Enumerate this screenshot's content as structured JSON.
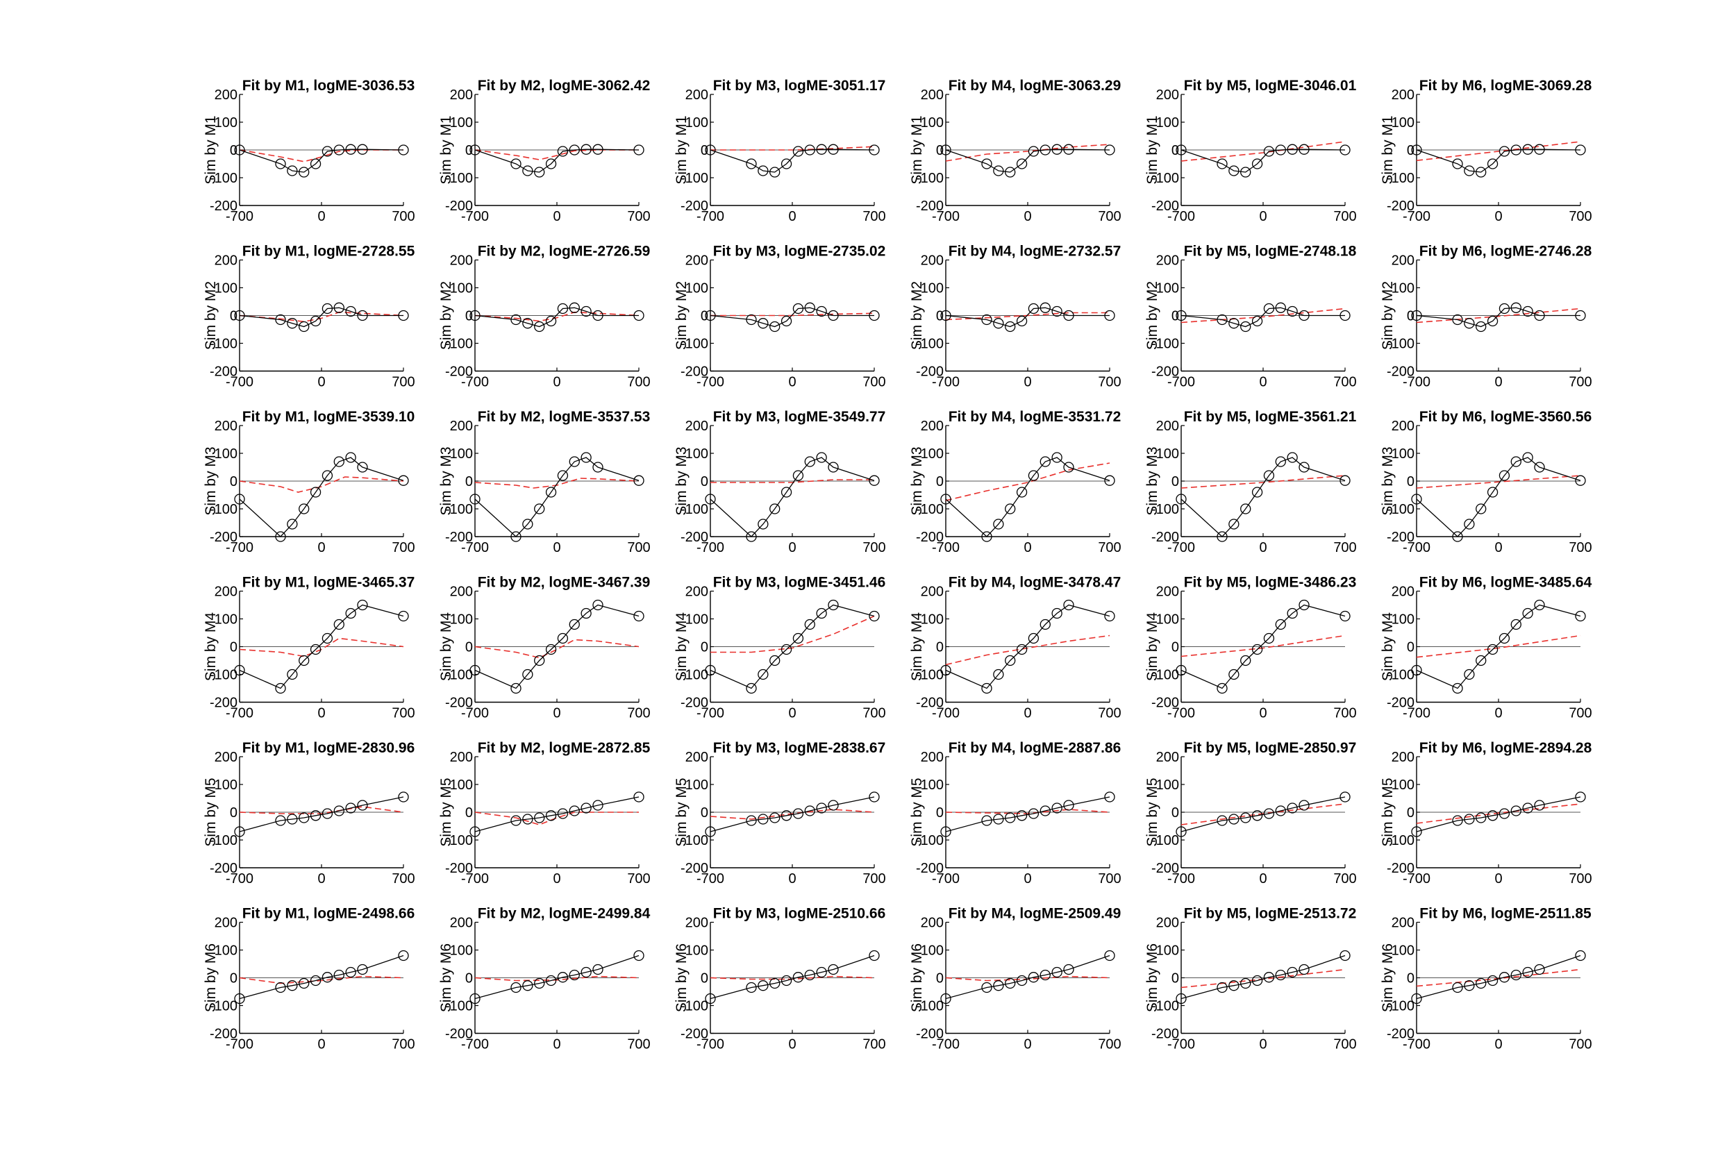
{
  "figure": {
    "rows": 6,
    "cols": 6,
    "row_labels": [
      "Sim by M1",
      "Sim by M2",
      "Sim by M3",
      "Sim by M4",
      "Sim by M5",
      "Sim by M6"
    ],
    "col_models": [
      "M1",
      "M2",
      "M3",
      "M4",
      "M5",
      "M6"
    ]
  },
  "chart_data": {
    "type": "line",
    "panel_grid": [
      6,
      6
    ],
    "xlim": [
      -700,
      700
    ],
    "ylim": [
      -200,
      200
    ],
    "xticks": [
      -700,
      0,
      700
    ],
    "yticks": [
      -200,
      -100,
      0,
      100,
      200
    ],
    "ytick_labels": [
      "-200",
      "-100",
      "0",
      "100",
      "200"
    ],
    "zero_line": true,
    "grid": false,
    "colors": {
      "sim": "#000000",
      "fit": "#e8302c",
      "zero": "#555555"
    },
    "sim_x": [
      -700,
      -350,
      -250,
      -150,
      -50,
      50,
      150,
      250,
      350,
      700
    ],
    "titles": [
      [
        "Fit by M1, logME-3036.53",
        "Fit by M2, logME-3062.42",
        "Fit by M3, logME-3051.17",
        "Fit by M4, logME-3063.29",
        "Fit by M5, logME-3046.01",
        "Fit by M6, logME-3069.28"
      ],
      [
        "Fit by M1, logME-2728.55",
        "Fit by M2, logME-2726.59",
        "Fit by M3, logME-2735.02",
        "Fit by M4, logME-2732.57",
        "Fit by M5, logME-2748.18",
        "Fit by M6, logME-2746.28"
      ],
      [
        "Fit by M1, logME-3539.10",
        "Fit by M2, logME-3537.53",
        "Fit by M3, logME-3549.77",
        "Fit by M4, logME-3531.72",
        "Fit by M5, logME-3561.21",
        "Fit by M6, logME-3560.56"
      ],
      [
        "Fit by M1, logME-3465.37",
        "Fit by M2, logME-3467.39",
        "Fit by M3, logME-3451.46",
        "Fit by M4, logME-3478.47",
        "Fit by M5, logME-3486.23",
        "Fit by M6, logME-3485.64"
      ],
      [
        "Fit by M1, logME-2830.96",
        "Fit by M2, logME-2872.85",
        "Fit by M3, logME-2838.67",
        "Fit by M4, logME-2887.86",
        "Fit by M5, logME-2850.97",
        "Fit by M6, logME-2894.28"
      ],
      [
        "Fit by M1, logME-2498.66",
        "Fit by M2, logME-2499.84",
        "Fit by M3, logME-2510.66",
        "Fit by M4, logME-2509.49",
        "Fit by M5, logME-2513.72",
        "Fit by M6, logME-2511.85"
      ]
    ],
    "sim_y": [
      [
        0,
        -50,
        -75,
        -80,
        -50,
        -5,
        0,
        2,
        2,
        0
      ],
      [
        0,
        -15,
        -28,
        -40,
        -20,
        25,
        28,
        15,
        0,
        0
      ],
      [
        -65,
        -200,
        -155,
        -100,
        -40,
        20,
        70,
        85,
        50,
        2
      ],
      [
        -85,
        -150,
        -100,
        -50,
        -10,
        30,
        80,
        120,
        150,
        110
      ],
      [
        -70,
        -30,
        -25,
        -20,
        -12,
        -5,
        5,
        15,
        25,
        55
      ],
      [
        -75,
        -35,
        -28,
        -20,
        -10,
        2,
        10,
        20,
        30,
        80
      ]
    ],
    "fits": [
      [
        {
          "x": [
            -700,
            -350,
            -150,
            0,
            150,
            350,
            700
          ],
          "y": [
            0,
            -25,
            -42,
            -25,
            -5,
            0,
            0
          ]
        },
        {
          "x": [
            -700,
            -350,
            -150,
            0,
            150,
            350,
            700
          ],
          "y": [
            0,
            -20,
            -35,
            -20,
            -3,
            0,
            0
          ]
        },
        {
          "x": [
            -700,
            0,
            350,
            700
          ],
          "y": [
            0,
            0,
            5,
            12
          ]
        },
        {
          "x": [
            -700,
            -350,
            0,
            350,
            700
          ],
          "y": [
            -40,
            -15,
            -5,
            10,
            20
          ]
        },
        {
          "x": [
            -700,
            0,
            700
          ],
          "y": [
            -40,
            -10,
            30
          ]
        },
        {
          "x": [
            -700,
            0,
            700
          ],
          "y": [
            -38,
            -5,
            30
          ]
        }
      ],
      [
        {
          "x": [
            -700,
            -350,
            -150,
            0,
            150,
            350,
            700
          ],
          "y": [
            0,
            -12,
            -22,
            -10,
            12,
            8,
            0
          ]
        },
        {
          "x": [
            -700,
            -350,
            -150,
            0,
            150,
            350,
            700
          ],
          "y": [
            0,
            -10,
            -20,
            -8,
            12,
            8,
            0
          ]
        },
        {
          "x": [
            -700,
            0,
            350,
            700
          ],
          "y": [
            0,
            0,
            5,
            8
          ]
        },
        {
          "x": [
            -700,
            -350,
            0,
            350,
            700
          ],
          "y": [
            -15,
            -8,
            0,
            10,
            10
          ]
        },
        {
          "x": [
            -700,
            0,
            700
          ],
          "y": [
            -25,
            -5,
            25
          ]
        },
        {
          "x": [
            -700,
            0,
            700
          ],
          "y": [
            -25,
            -3,
            25
          ]
        }
      ],
      [
        {
          "x": [
            -700,
            -350,
            -200,
            0,
            200,
            350,
            700
          ],
          "y": [
            0,
            -20,
            -40,
            -20,
            15,
            12,
            0
          ]
        },
        {
          "x": [
            -700,
            -350,
            -200,
            0,
            200,
            350,
            700
          ],
          "y": [
            -5,
            -15,
            -25,
            -15,
            10,
            8,
            0
          ]
        },
        {
          "x": [
            -700,
            0,
            350,
            700
          ],
          "y": [
            -5,
            -5,
            5,
            5
          ]
        },
        {
          "x": [
            -700,
            -350,
            0,
            350,
            700
          ],
          "y": [
            -70,
            -35,
            -5,
            40,
            65
          ]
        },
        {
          "x": [
            -700,
            0,
            700
          ],
          "y": [
            -25,
            -5,
            20
          ]
        },
        {
          "x": [
            -700,
            0,
            700
          ],
          "y": [
            -25,
            -3,
            20
          ]
        }
      ],
      [
        {
          "x": [
            -700,
            -350,
            -150,
            0,
            150,
            350,
            700
          ],
          "y": [
            -10,
            -20,
            -35,
            -10,
            30,
            20,
            0
          ]
        },
        {
          "x": [
            -700,
            -350,
            -150,
            0,
            150,
            350,
            700
          ],
          "y": [
            0,
            -20,
            -40,
            -10,
            25,
            20,
            0
          ]
        },
        {
          "x": [
            -700,
            -350,
            0,
            350,
            700
          ],
          "y": [
            -20,
            -20,
            -5,
            45,
            110
          ]
        },
        {
          "x": [
            -700,
            -350,
            0,
            350,
            700
          ],
          "y": [
            -65,
            -30,
            -5,
            20,
            40
          ]
        },
        {
          "x": [
            -700,
            0,
            700
          ],
          "y": [
            -35,
            -5,
            40
          ]
        },
        {
          "x": [
            -700,
            0,
            700
          ],
          "y": [
            -38,
            -5,
            40
          ]
        }
      ],
      [
        {
          "x": [
            -700,
            -350,
            0,
            350,
            700
          ],
          "y": [
            0,
            -5,
            -5,
            20,
            0
          ]
        },
        {
          "x": [
            -700,
            -350,
            -150,
            0,
            150,
            350,
            700
          ],
          "y": [
            0,
            -20,
            -45,
            -20,
            0,
            0,
            0
          ]
        },
        {
          "x": [
            -700,
            -350,
            0,
            350,
            700
          ],
          "y": [
            -15,
            -25,
            -5,
            10,
            0
          ]
        },
        {
          "x": [
            -700,
            0,
            350,
            700
          ],
          "y": [
            0,
            -5,
            10,
            0
          ]
        },
        {
          "x": [
            -700,
            0,
            700
          ],
          "y": [
            -45,
            -5,
            30
          ]
        },
        {
          "x": [
            -700,
            0,
            700
          ],
          "y": [
            -40,
            -3,
            30
          ]
        }
      ],
      [
        {
          "x": [
            -700,
            -350,
            0,
            350,
            700
          ],
          "y": [
            0,
            -20,
            -10,
            5,
            0
          ]
        },
        {
          "x": [
            -700,
            -350,
            0,
            350,
            700
          ],
          "y": [
            0,
            -10,
            -8,
            5,
            0
          ]
        },
        {
          "x": [
            -700,
            -350,
            0,
            350,
            700
          ],
          "y": [
            0,
            -5,
            -5,
            5,
            0
          ]
        },
        {
          "x": [
            -700,
            -350,
            0,
            350,
            700
          ],
          "y": [
            0,
            -10,
            -5,
            5,
            0
          ]
        },
        {
          "x": [
            -700,
            0,
            700
          ],
          "y": [
            -35,
            -5,
            30
          ]
        },
        {
          "x": [
            -700,
            0,
            700
          ],
          "y": [
            -30,
            -3,
            30
          ]
        }
      ]
    ]
  }
}
